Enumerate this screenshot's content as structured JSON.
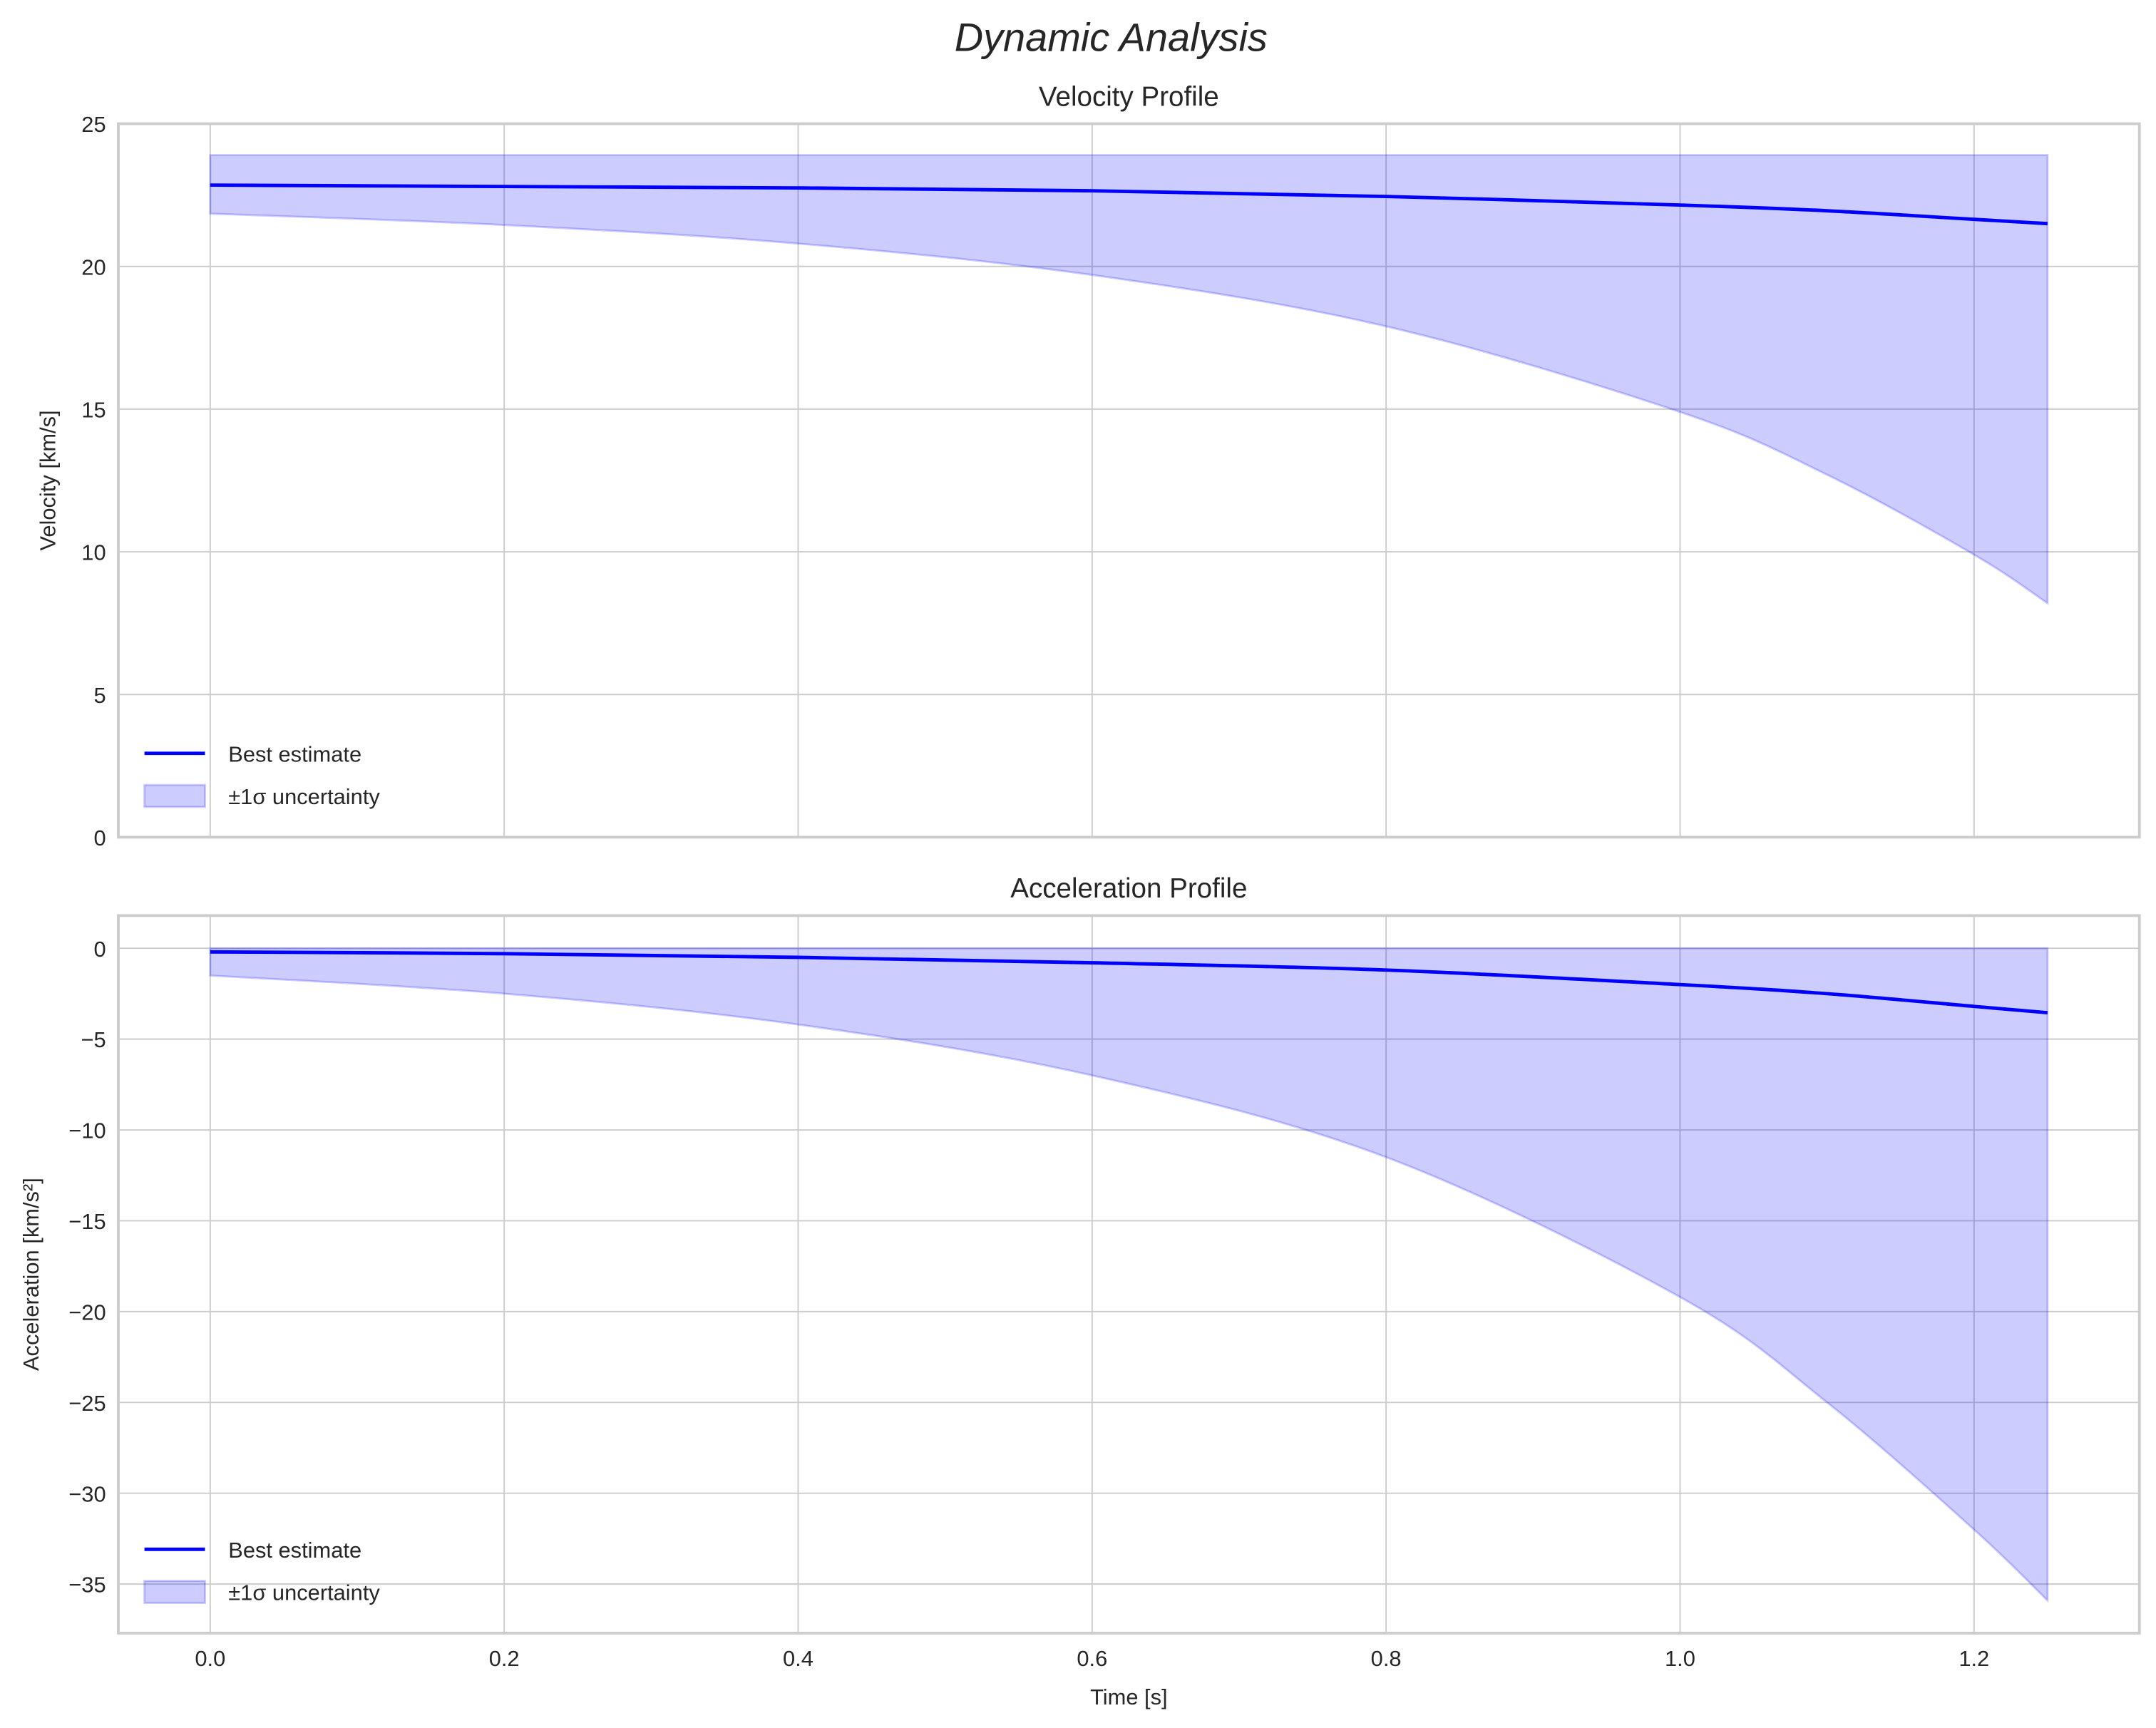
{
  "chart_data": [
    {
      "type": "line",
      "title": "Velocity Profile",
      "xlabel": "",
      "ylabel": "Velocity [km/s]",
      "xlim": [
        -0.0625,
        1.3125
      ],
      "ylim": [
        0,
        25
      ],
      "xticks": [
        "0.0",
        "0.2",
        "0.4",
        "0.6",
        "0.8",
        "1.0",
        "1.2"
      ],
      "xtick_values": [
        0,
        0.2,
        0.4,
        0.6,
        0.8,
        1.0,
        1.2
      ],
      "show_xticklabels": false,
      "yticks": [
        "0",
        "5",
        "10",
        "15",
        "20",
        "25"
      ],
      "ytick_values": [
        0,
        5,
        10,
        15,
        20,
        25
      ],
      "grid": true,
      "legend": "lower-left",
      "x": [
        0,
        0.2,
        0.4,
        0.6,
        0.8,
        1.0,
        1.1,
        1.2,
        1.25
      ],
      "series": [
        {
          "name": "Best estimate",
          "kind": "line",
          "color": "#0000ff",
          "values": [
            22.85,
            22.8,
            22.75,
            22.65,
            22.45,
            22.15,
            21.95,
            21.65,
            21.5
          ]
        },
        {
          "name": "±1σ uncertainty",
          "kind": "band",
          "color": "#0000ff",
          "lower": [
            21.85,
            21.45,
            20.8,
            19.7,
            17.9,
            14.9,
            12.7,
            9.9,
            8.2
          ],
          "upper": [
            23.9,
            23.9,
            23.9,
            23.9,
            23.9,
            23.9,
            23.9,
            23.9,
            23.9
          ]
        }
      ]
    },
    {
      "type": "line",
      "title": "Acceleration Profile",
      "xlabel": "Time [s]",
      "ylabel": "Acceleration [km/s²]",
      "xlim": [
        -0.0625,
        1.3125
      ],
      "ylim": [
        -37.7,
        1.8
      ],
      "xticks": [
        "0.0",
        "0.2",
        "0.4",
        "0.6",
        "0.8",
        "1.0",
        "1.2"
      ],
      "xtick_values": [
        0,
        0.2,
        0.4,
        0.6,
        0.8,
        1.0,
        1.2
      ],
      "show_xticklabels": true,
      "yticks": [
        "0",
        "−5",
        "−10",
        "−15",
        "−20",
        "−25",
        "−30",
        "−35"
      ],
      "ytick_values": [
        0,
        -5,
        -10,
        -15,
        -20,
        -25,
        -30,
        -35
      ],
      "grid": true,
      "legend": "lower-left",
      "x": [
        0,
        0.2,
        0.4,
        0.6,
        0.8,
        1.0,
        1.1,
        1.2,
        1.25
      ],
      "series": [
        {
          "name": "Best estimate",
          "kind": "line",
          "color": "#0000ff",
          "values": [
            -0.2,
            -0.3,
            -0.5,
            -0.8,
            -1.2,
            -2.0,
            -2.5,
            -3.2,
            -3.55
          ]
        },
        {
          "name": "±1σ uncertainty",
          "kind": "band",
          "color": "#0000ff",
          "lower": [
            -1.5,
            -2.5,
            -4.2,
            -7.0,
            -11.5,
            -19.2,
            -25.0,
            -32.0,
            -35.9
          ],
          "upper": [
            0,
            0,
            0,
            0,
            0,
            0,
            0,
            0,
            0
          ]
        }
      ]
    }
  ],
  "figure": {
    "title": "Dynamic Analysis"
  }
}
